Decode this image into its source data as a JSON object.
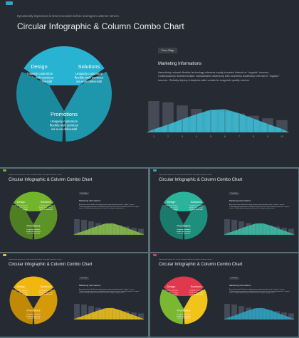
{
  "kicker": "Dynamically impact just in time innovation before leveraged customer service.",
  "title": "Circular Infographic & Column Combo Chart",
  "segments": [
    {
      "title": "Design",
      "line1": "Uniquely customize",
      "line2": "flexible web services",
      "line3": "vis-a-vis deliverabl"
    },
    {
      "title": "Solutions",
      "line1": "Uniquely customize",
      "line2": "flexible web services",
      "line3": "vis-a-vis deliverabl"
    },
    {
      "title": "Promotions",
      "line1": "Uniquely customize",
      "line2": "flexible web services",
      "line3": "vis-a-vis deliverabl"
    }
  ],
  "badge": "Free Step",
  "info_title": "Marketing  Informations",
  "info_body": "Assertively unleash flexible technology whereas equity invested internal or \"organic\" sources. Collaboratively disintermediate maintainable leadership with seamless leadership internal or \"organic\" sources. Globally deploy enterprise-wide vortals for magnetic quality vectors.",
  "themes": {
    "blue": {
      "page_num_color": "#2ba7c7",
      "pie": [
        "#27b3d1",
        "#1e97ad",
        "#1a8a9f"
      ],
      "area": "#3dc3dc"
    },
    "green": {
      "page_num_color": "#6fb52c",
      "pie": [
        "#72b42a",
        "#5c9426",
        "#4e7f22"
      ],
      "area": "#8bc34a"
    },
    "teal": {
      "page_num_color": "#27b39a",
      "pie": [
        "#2bb49b",
        "#1f8f7d",
        "#1a7a6b"
      ],
      "area": "#3cc3a8"
    },
    "yellow": {
      "page_num_color": "#f4c01e",
      "pie": [
        "#f0b80f",
        "#d49a08",
        "#c18a06"
      ],
      "area": "#f5c518"
    },
    "multi": {
      "page_num_color": "#e53a4e",
      "pie": [
        "#e0384c",
        "#f0c419",
        "#7ab832"
      ],
      "area": "#2ba7c7"
    }
  },
  "chart_data": {
    "type": "bar",
    "categories": [
      "1",
      "2",
      "3",
      "4",
      "5",
      "6",
      "7",
      "8",
      "9",
      "10"
    ],
    "series": [
      {
        "type": "bar",
        "values": [
          10,
          9.6,
          8.6,
          7.5,
          7.0,
          6.6,
          6.0,
          5.3,
          4.5,
          3.9
        ]
      },
      {
        "type": "area",
        "values": [
          1.0,
          2.5,
          4.2,
          5.8,
          7.2,
          7.4,
          6.1,
          4.4,
          2.7,
          1.1
        ]
      }
    ],
    "xlabel": "",
    "ylabel": "",
    "ylim": [
      0,
      10
    ]
  }
}
